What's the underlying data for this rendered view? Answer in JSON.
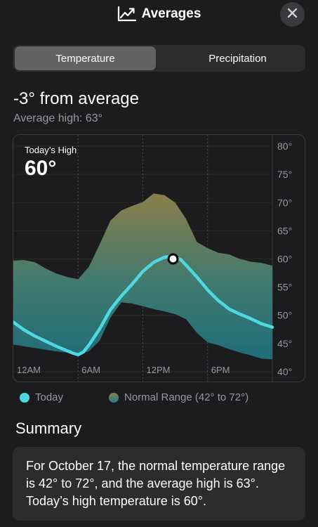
{
  "header": {
    "title": "Averages",
    "icon": "chart-line-icon",
    "close_icon": "close-icon"
  },
  "tabs": [
    {
      "label": "Temperature",
      "selected": true
    },
    {
      "label": "Precipitation",
      "selected": false
    }
  ],
  "comparison": {
    "delta": "-3° from average",
    "average_high": "Average high: 63°"
  },
  "chart": {
    "overlay_label": "Today’s High",
    "overlay_value": "60°"
  },
  "legend": {
    "today": "Today",
    "normal": "Normal Range (42° to 72°)"
  },
  "summary": {
    "heading": "Summary",
    "text": "For October 17, the normal temperature range is 42° to 72°, and the average high is 63°. Today’s high temperature is 60°."
  },
  "colors": {
    "background": "#1c1c1e",
    "card": "#2c2c2e",
    "today_line": "#4fd8e0",
    "range_top": "#8a7e4a",
    "range_bottom": "#1f8088",
    "secondary_text": "#98989d"
  },
  "chart_data": {
    "type": "area",
    "x_unit": "hour of day",
    "xticks": [
      {
        "x": 0,
        "label": "12AM"
      },
      {
        "x": 6,
        "label": "6AM"
      },
      {
        "x": 12,
        "label": "12PM"
      },
      {
        "x": 18,
        "label": "6PM"
      }
    ],
    "yticks": [
      80,
      75,
      70,
      65,
      60,
      55,
      50,
      45,
      40
    ],
    "ytick_labels": [
      "80°",
      "75°",
      "70°",
      "65°",
      "60°",
      "55°",
      "50°",
      "45°",
      "40°"
    ],
    "ylim": [
      38,
      82
    ],
    "xlim": [
      0,
      24
    ],
    "grid": true,
    "series": [
      {
        "name": "Today",
        "kind": "line",
        "x": [
          0,
          1,
          2,
          3,
          4,
          5,
          5.5,
          6,
          6.5,
          7,
          8,
          9,
          10,
          11,
          12,
          13,
          14,
          14.8,
          15.5,
          16,
          17,
          18,
          19,
          20,
          21,
          22,
          23,
          24
        ],
        "values": [
          48.8,
          47.4,
          46.3,
          45.4,
          44.5,
          43.7,
          43.3,
          43.0,
          43.5,
          44.7,
          47.6,
          51.0,
          53.4,
          55.5,
          57.8,
          59.4,
          60.3,
          60.5,
          59.9,
          58.9,
          56.8,
          54.5,
          52.6,
          51.1,
          50.2,
          49.4,
          48.5,
          47.9
        ]
      },
      {
        "name": "Normal Range",
        "kind": "range",
        "x": [
          0,
          1,
          2,
          3,
          4,
          5,
          6,
          7,
          8,
          9,
          10,
          11,
          12,
          13,
          14,
          15,
          16,
          17,
          18,
          19,
          20,
          21,
          22,
          23,
          24
        ],
        "high": [
          59.7,
          59.8,
          59.4,
          58.3,
          57.4,
          56.8,
          56.4,
          58.6,
          62.6,
          66.8,
          68.6,
          69.4,
          70.1,
          71.6,
          71.3,
          70.0,
          67.1,
          63.0,
          61.9,
          61.1,
          60.8,
          60.0,
          59.5,
          59.3,
          58.8
        ],
        "low": [
          44.8,
          44.5,
          44.2,
          43.9,
          43.6,
          43.4,
          43.1,
          43.6,
          45.5,
          49.6,
          52.3,
          52.1,
          51.6,
          51.1,
          50.7,
          50.2,
          49.3,
          46.9,
          45.2,
          44.7,
          44.0,
          43.4,
          42.9,
          42.3,
          42.2
        ]
      }
    ],
    "highlight": {
      "x": 14.8,
      "value": 60
    }
  }
}
